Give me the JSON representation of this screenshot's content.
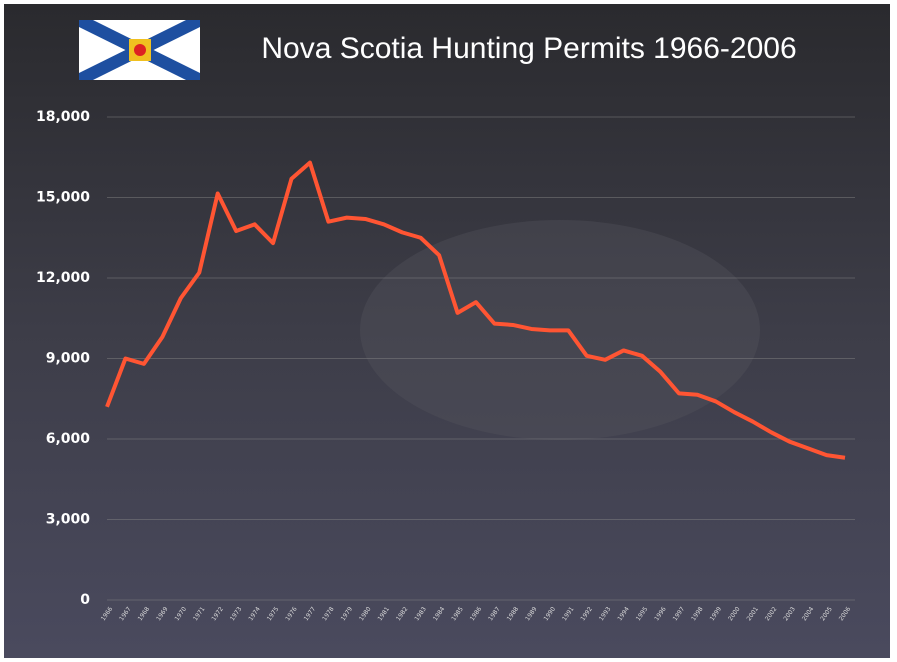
{
  "chart_data": {
    "type": "line",
    "title": "Nova Scotia Hunting Permits 1966-2006",
    "categories": [
      "1966",
      "1967",
      "1968",
      "1969",
      "1970",
      "1971",
      "1972",
      "1973",
      "1974",
      "1975",
      "1976",
      "1977",
      "1978",
      "1979",
      "1980",
      "1981",
      "1982",
      "1983",
      "1984",
      "1985",
      "1986",
      "1987",
      "1988",
      "1989",
      "1990",
      "1991",
      "1992",
      "1993",
      "1994",
      "1995",
      "1996",
      "1997",
      "1998",
      "1999",
      "2000",
      "2001",
      "2002",
      "2003",
      "2004",
      "2005",
      "2006"
    ],
    "values": [
      7200,
      9000,
      8800,
      9800,
      11250,
      12200,
      15150,
      13750,
      14000,
      13300,
      15700,
      16300,
      14100,
      14250,
      14200,
      14000,
      13700,
      13500,
      12850,
      10700,
      11100,
      10300,
      10250,
      10100,
      10050,
      10050,
      9100,
      8950,
      9300,
      9100,
      8500,
      7700,
      7650,
      7400,
      7000,
      6650,
      6250,
      5900,
      5650,
      5400,
      5300
    ],
    "color": "#ff5533",
    "ylim": [
      0,
      18000
    ],
    "yticks": [
      0,
      {
        "value": 3000,
        "label": "3,000"
      },
      {
        "value": 6000,
        "label": "6,000"
      },
      {
        "value": 9000,
        "label": "9,000"
      },
      {
        "value": 12000,
        "label": "12,000"
      },
      {
        "value": 15000,
        "label": "15,000"
      },
      {
        "value": 18000,
        "label": "18,000"
      }
    ],
    "grid": true
  }
}
